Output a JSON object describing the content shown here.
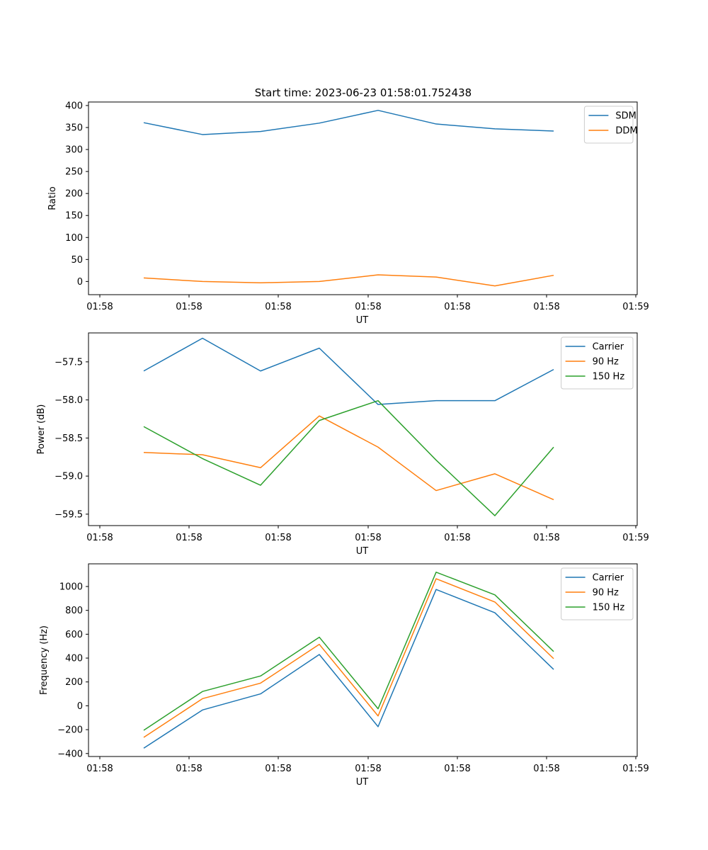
{
  "chart_data": [
    {
      "type": "line",
      "title": "Start time: 2023-06-23 01:58:01.752438",
      "xlabel": "UT",
      "ylabel": "Ratio",
      "xticklabels": [
        "01:58",
        "01:58",
        "01:58",
        "01:58",
        "01:58",
        "01:58",
        "01:58",
        "01:59"
      ],
      "yticks": [
        0,
        50,
        100,
        150,
        200,
        250,
        300,
        350,
        400
      ],
      "ylim": [
        -30,
        408
      ],
      "legend_position": "upper right",
      "series": [
        {
          "name": "SDM",
          "color": "#1f77b4",
          "values": [
            361,
            334,
            341,
            360,
            389,
            358,
            347,
            342
          ]
        },
        {
          "name": "DDM",
          "color": "#ff7f0e",
          "values": [
            8,
            0,
            -3,
            0,
            15,
            10,
            -10,
            14
          ]
        }
      ]
    },
    {
      "type": "line",
      "title": "",
      "xlabel": "UT",
      "ylabel": "Power (dB)",
      "xticklabels": [
        "01:58",
        "01:58",
        "01:58",
        "01:58",
        "01:58",
        "01:58",
        "01:58",
        "01:59"
      ],
      "yticks": [
        -57.5,
        -58.0,
        -58.5,
        -59.0,
        -59.5
      ],
      "yticklabels": [
        "−57.5",
        "−58.0",
        "−58.5",
        "−59.0",
        "−59.5"
      ],
      "ylim": [
        -59.65,
        -57.12
      ],
      "legend_position": "upper right",
      "series": [
        {
          "name": "Carrier",
          "color": "#1f77b4",
          "values": [
            -57.62,
            -57.19,
            -57.62,
            -57.32,
            -58.06,
            -58.01,
            -58.01,
            -57.6
          ]
        },
        {
          "name": "90 Hz",
          "color": "#ff7f0e",
          "values": [
            -58.69,
            -58.72,
            -58.89,
            -58.21,
            -58.62,
            -59.19,
            -58.97,
            -59.31
          ]
        },
        {
          "name": "150 Hz",
          "color": "#2ca02c",
          "values": [
            -58.35,
            -58.77,
            -59.12,
            -58.27,
            -58.01,
            -58.79,
            -59.52,
            -58.62
          ]
        }
      ]
    },
    {
      "type": "line",
      "title": "",
      "xlabel": "UT",
      "ylabel": "Frequency (Hz)",
      "xticklabels": [
        "01:58",
        "01:58",
        "01:58",
        "01:58",
        "01:58",
        "01:58",
        "01:58",
        "01:59"
      ],
      "yticks": [
        -400,
        -200,
        0,
        200,
        400,
        600,
        800,
        1000
      ],
      "yticklabels": [
        "−400",
        "−200",
        "0",
        "200",
        "400",
        "600",
        "800",
        "1000"
      ],
      "ylim": [
        -425,
        1190
      ],
      "legend_position": "upper right",
      "series": [
        {
          "name": "Carrier",
          "color": "#1f77b4",
          "values": [
            -355,
            -35,
            100,
            430,
            -175,
            975,
            780,
            305
          ]
        },
        {
          "name": "90 Hz",
          "color": "#ff7f0e",
          "values": [
            -265,
            60,
            190,
            515,
            -85,
            1065,
            870,
            395
          ]
        },
        {
          "name": "150 Hz",
          "color": "#2ca02c",
          "values": [
            -205,
            120,
            250,
            575,
            -25,
            1120,
            930,
            455
          ]
        }
      ]
    }
  ]
}
